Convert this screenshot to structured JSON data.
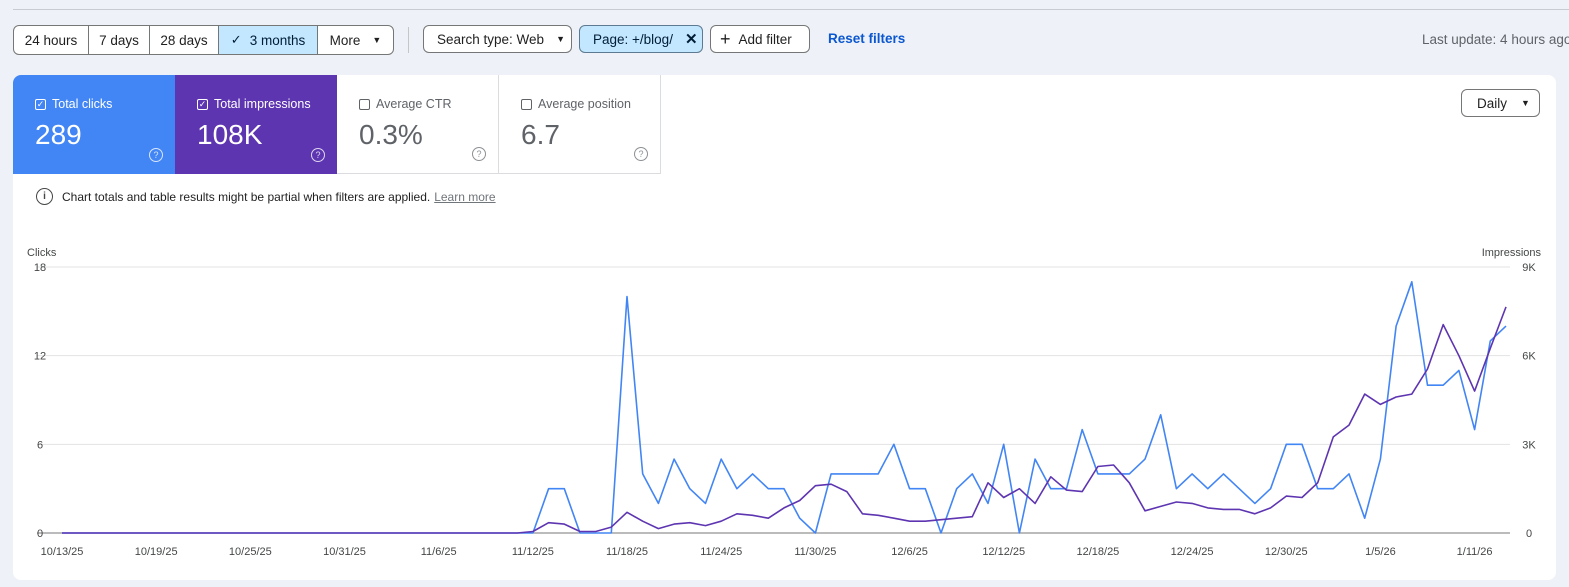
{
  "date_range": {
    "options": [
      "24 hours",
      "7 days",
      "28 days",
      "3 months",
      "More"
    ],
    "selected": "3 months"
  },
  "filters": {
    "search_type": "Search type: Web",
    "page": "Page: +/blog/",
    "add_filter": "Add filter",
    "reset": "Reset filters"
  },
  "last_update": "Last update: 4 hours ago",
  "metrics": {
    "clicks": {
      "label": "Total clicks",
      "value": "289",
      "checked": true,
      "color": "#4285f4"
    },
    "impressions": {
      "label": "Total impressions",
      "value": "108K",
      "checked": true,
      "color": "#5e35b1"
    },
    "ctr": {
      "label": "Average CTR",
      "value": "0.3%",
      "checked": false
    },
    "position": {
      "label": "Average position",
      "value": "6.7",
      "checked": false
    }
  },
  "granularity": "Daily",
  "notice": {
    "text": "Chart totals and table results might be partial when filters are applied.",
    "link": "Learn more"
  },
  "chart_data": {
    "type": "line",
    "ylabel_left": "Clicks",
    "ylabel_right": "Impressions",
    "y_left_ticks": [
      "0",
      "6",
      "12",
      "18"
    ],
    "y_right_ticks": [
      "0",
      "3K",
      "6K",
      "9K"
    ],
    "ylim_left": [
      0,
      18
    ],
    "ylim_right": [
      0,
      9000
    ],
    "x_ticks": [
      "10/13/25",
      "10/19/25",
      "10/25/25",
      "10/31/25",
      "11/6/25",
      "11/12/25",
      "11/18/25",
      "11/24/25",
      "11/30/25",
      "12/6/25",
      "12/12/25",
      "12/18/25",
      "12/24/25",
      "12/30/25",
      "1/5/26",
      "1/11/26"
    ],
    "start_date": "10/13/25",
    "grid": true,
    "series": [
      {
        "name": "Clicks",
        "axis": "left",
        "color": "#4285f4",
        "values": [
          0,
          0,
          0,
          0,
          0,
          0,
          0,
          0,
          0,
          0,
          0,
          0,
          0,
          0,
          0,
          0,
          0,
          0,
          0,
          0,
          0,
          0,
          0,
          0,
          0,
          0,
          0,
          0,
          0,
          0,
          0,
          3,
          3,
          0,
          0,
          0,
          16,
          4,
          2,
          5,
          3,
          2,
          5,
          3,
          4,
          3,
          3,
          1,
          0,
          4,
          4,
          4,
          4,
          6,
          3,
          3,
          0,
          3,
          4,
          2,
          6,
          0,
          5,
          3,
          3,
          7,
          4,
          4,
          4,
          5,
          8,
          3,
          4,
          3,
          4,
          3,
          2,
          3,
          6,
          6,
          3,
          3,
          4,
          1,
          5,
          14,
          17,
          10,
          10,
          11,
          7,
          13,
          14
        ]
      },
      {
        "name": "Impressions",
        "axis": "right",
        "color": "#5e35b1",
        "values": [
          0,
          0,
          0,
          0,
          0,
          0,
          0,
          0,
          0,
          0,
          0,
          0,
          0,
          0,
          0,
          0,
          0,
          0,
          0,
          0,
          0,
          0,
          0,
          0,
          0,
          0,
          0,
          0,
          0,
          0,
          50,
          350,
          300,
          50,
          50,
          200,
          700,
          400,
          150,
          300,
          350,
          250,
          400,
          650,
          600,
          500,
          850,
          1100,
          1600,
          1650,
          1400,
          650,
          600,
          500,
          400,
          400,
          450,
          500,
          550,
          1700,
          1200,
          1500,
          1000,
          1900,
          1450,
          1400,
          2250,
          2300,
          1700,
          750,
          900,
          1050,
          1000,
          850,
          800,
          800,
          650,
          850,
          1250,
          1200,
          1700,
          3250,
          3650,
          4700,
          4350,
          4600,
          4700,
          5550,
          7050,
          6000,
          4800,
          6250,
          7650
        ]
      }
    ]
  }
}
